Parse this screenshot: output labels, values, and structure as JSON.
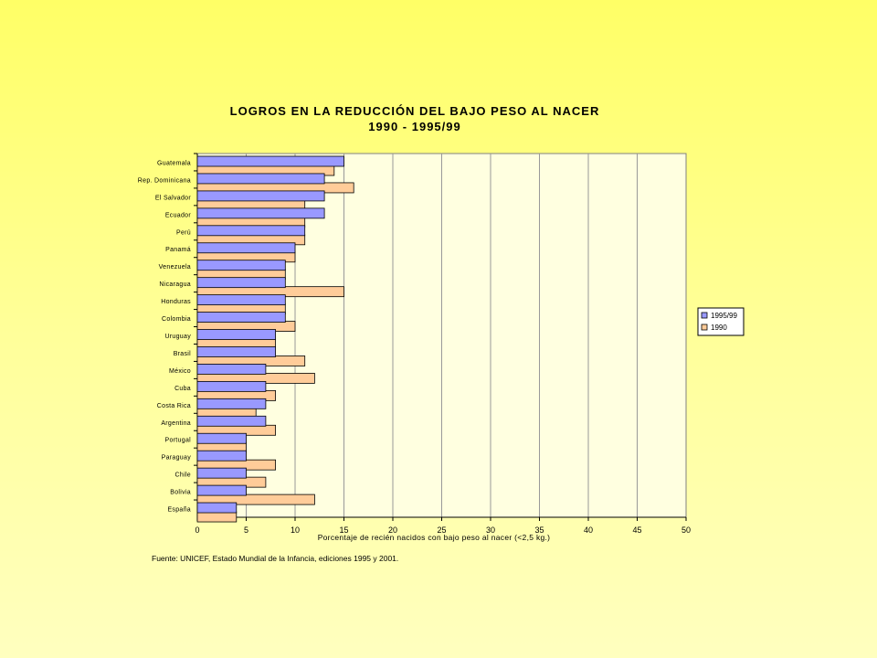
{
  "chart_data": {
    "type": "bar",
    "orientation": "horizontal",
    "title": [
      "LOGROS EN LA REDUCCIÓN DEL BAJO PESO AL NACER",
      "1990 - 1995/99"
    ],
    "xlabel": "Porcentaje de recién nacidos con bajo peso al nacer (<2,5 kg.)",
    "ylabel": "",
    "xlim": [
      0,
      50
    ],
    "x_ticks": [
      "0",
      "5",
      "10",
      "15",
      "20",
      "25",
      "30",
      "35",
      "40",
      "45",
      "50"
    ],
    "grid": "vertical",
    "legend": "right",
    "categories": [
      "Guatemala",
      "Rep. Dominicana",
      "El Salvador",
      "Ecuador",
      "Perú",
      "Panamá",
      "Venezuela",
      "Nicaragua",
      "Honduras",
      "Colombia",
      "Uruguay",
      "Brasil",
      "México",
      "Cuba",
      "Costa Rica",
      "Argentina",
      "Portugal",
      "Paraguay",
      "Chile",
      "Bolivia",
      "España"
    ],
    "series": [
      {
        "name": "1995/99",
        "color": "#9999ff",
        "values": [
          15,
          13,
          13,
          13,
          11,
          10,
          9,
          9,
          9,
          9,
          8,
          8,
          7,
          7,
          7,
          7,
          5,
          5,
          5,
          5,
          4
        ]
      },
      {
        "name": "1990",
        "color": "#ffcc99",
        "values": [
          14,
          16,
          11,
          11,
          11,
          10,
          9,
          15,
          9,
          10,
          8,
          11,
          12,
          8,
          6,
          8,
          5,
          8,
          7,
          12,
          4
        ]
      }
    ]
  },
  "source": "Fuente: UNICEF, Estado Mundial de la Infancia, ediciones 1995 y 2001.",
  "colors": {
    "plot_background": "#ffffe0",
    "gridline": "#999999"
  }
}
